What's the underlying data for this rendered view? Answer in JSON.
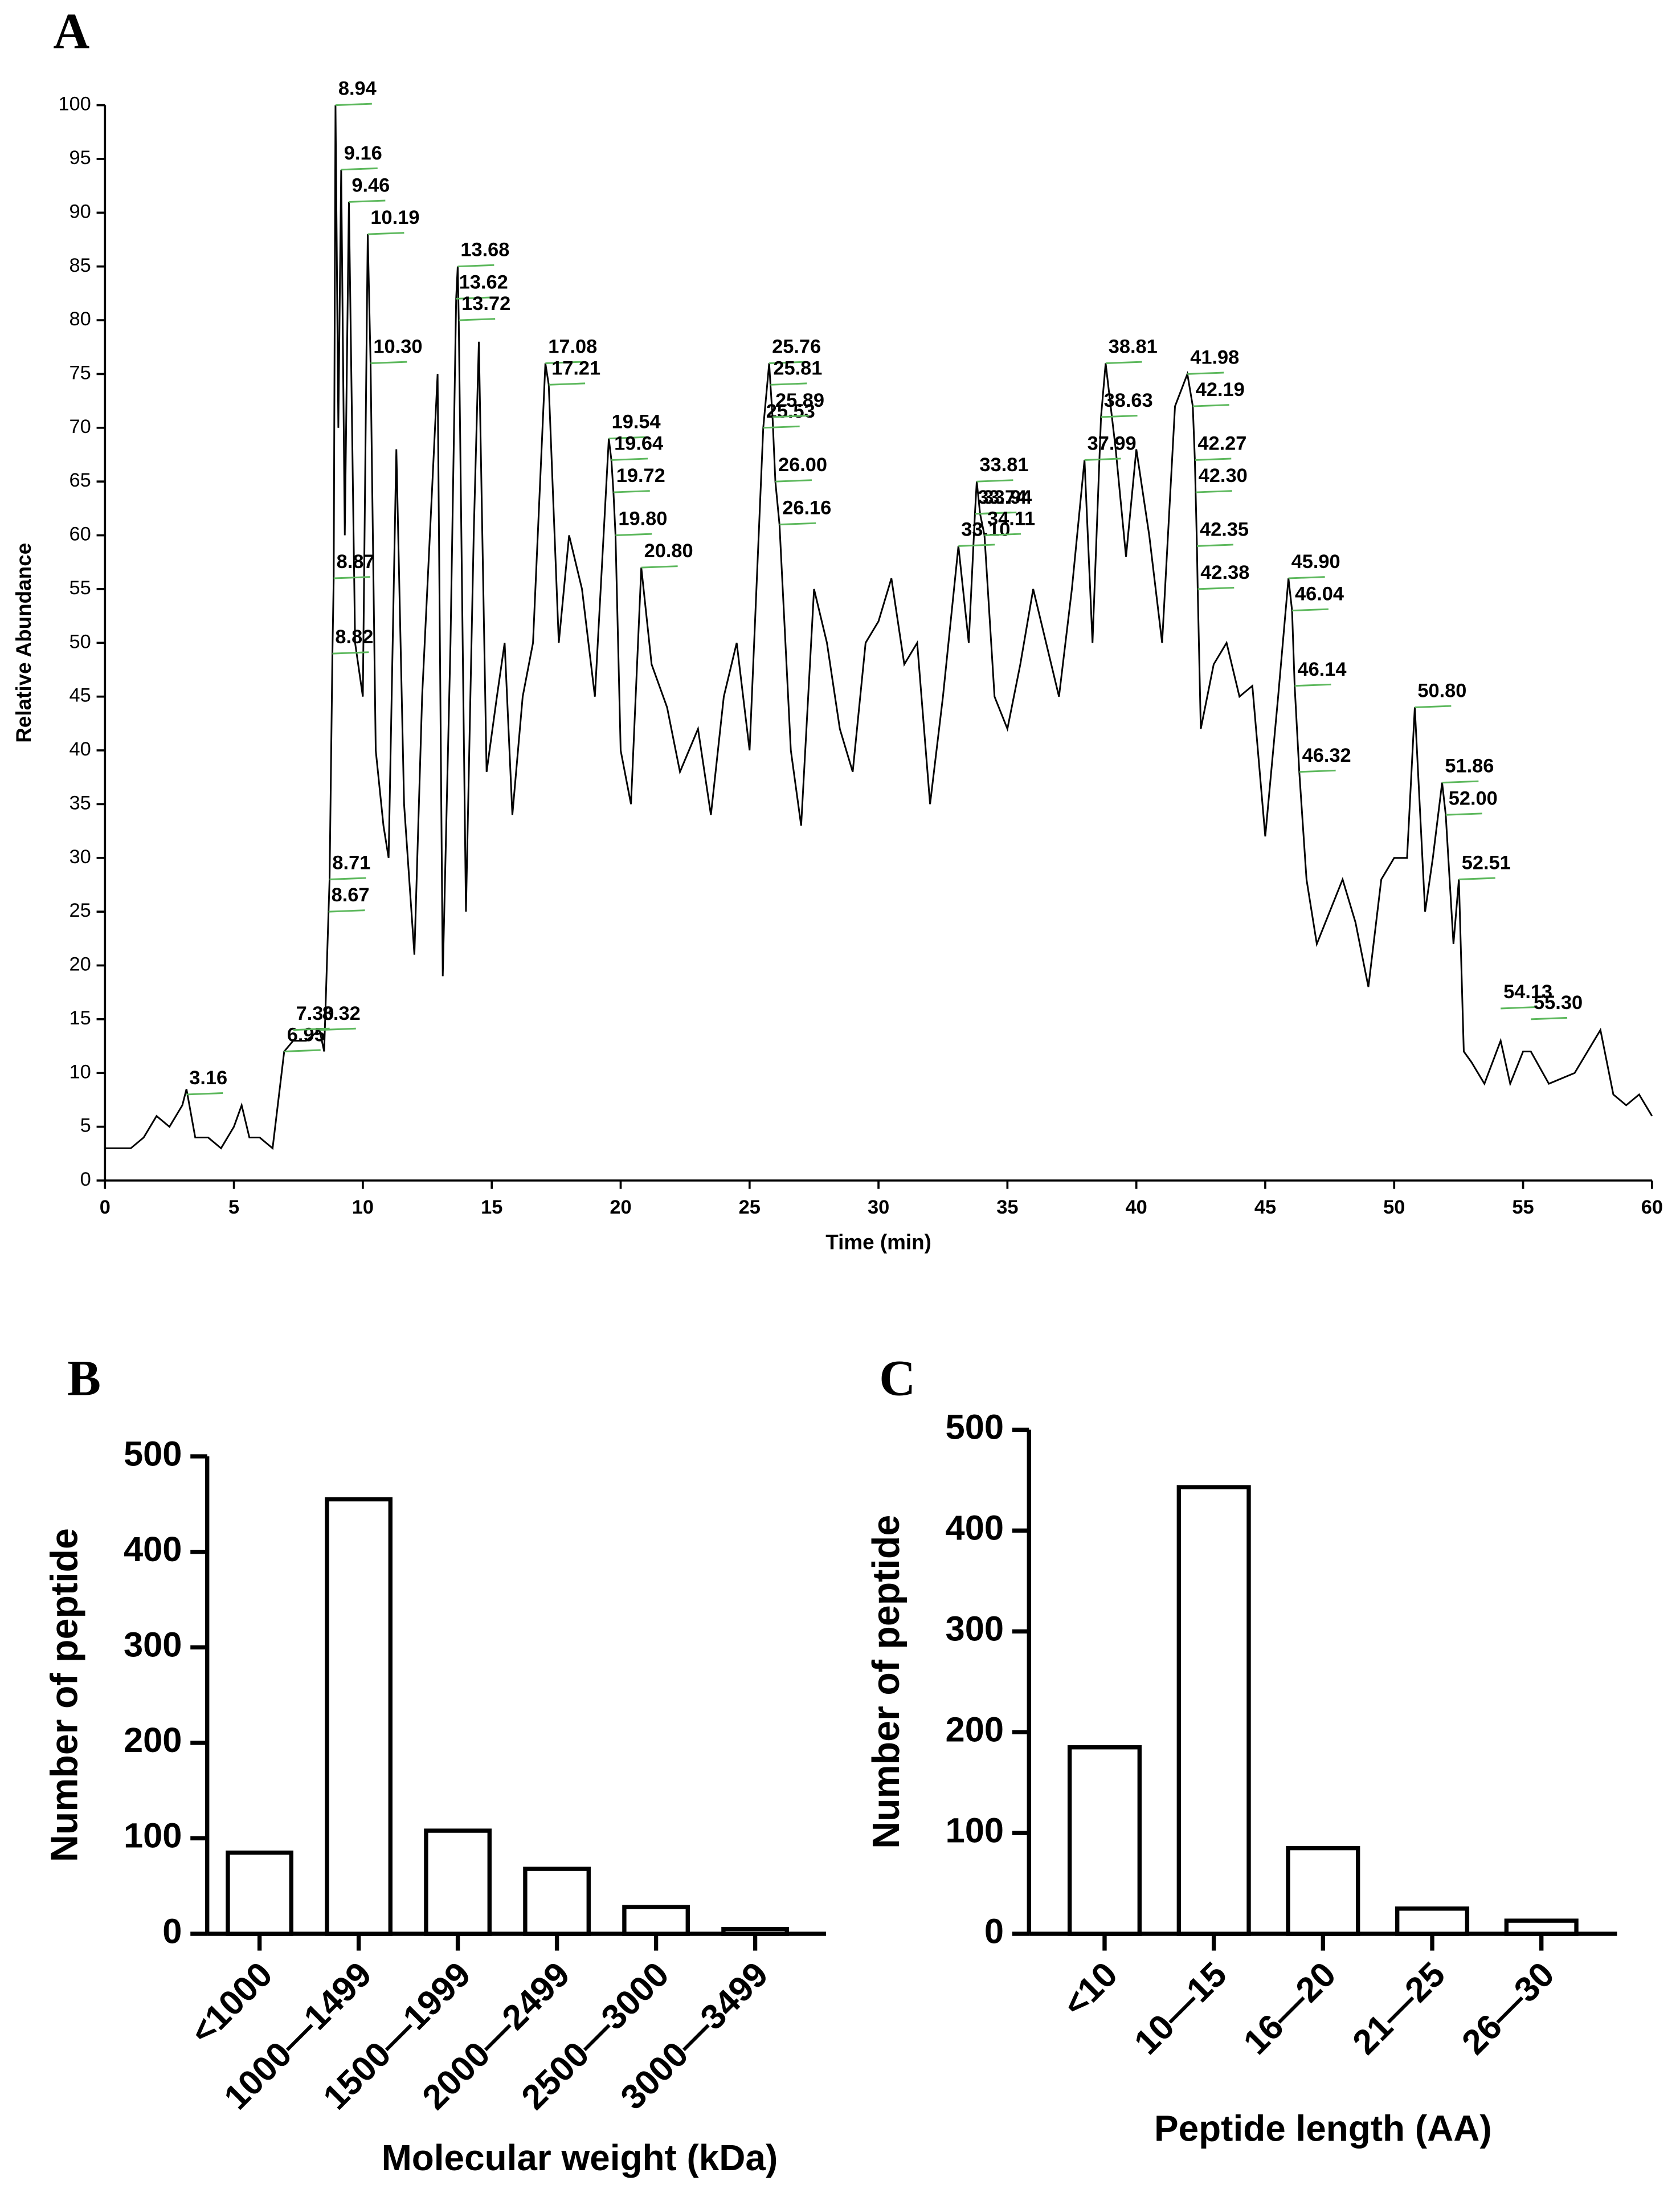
{
  "chart_data": [
    {
      "type": "line",
      "label": "A",
      "xlabel": "Time (min)",
      "ylabel": "Relative Abundance",
      "color": "#000000",
      "peak_color": "#5cb85c",
      "x": [
        0,
        1,
        1.5,
        2,
        2.5,
        3,
        3.16,
        3.5,
        4,
        4.5,
        5,
        5.3,
        5.6,
        6,
        6.5,
        6.95,
        7.3,
        7.8,
        8.32,
        8.5,
        8.67,
        8.71,
        8.82,
        8.87,
        8.94,
        9.05,
        9.16,
        9.3,
        9.46,
        9.7,
        10,
        10.19,
        10.3,
        10.5,
        10.8,
        11,
        11.3,
        11.6,
        12,
        12.3,
        12.6,
        12.9,
        13.1,
        13.4,
        13.62,
        13.68,
        13.72,
        14,
        14.3,
        14.5,
        14.8,
        15.2,
        15.5,
        15.8,
        16.2,
        16.6,
        17.08,
        17.21,
        17.6,
        18,
        18.5,
        19,
        19.54,
        19.64,
        19.72,
        19.8,
        20,
        20.4,
        20.8,
        21.2,
        21.8,
        22.3,
        23,
        23.5,
        24,
        24.5,
        25,
        25.53,
        25.76,
        25.81,
        25.89,
        26,
        26.16,
        26.6,
        27,
        27.5,
        28,
        28.5,
        29,
        29.5,
        30,
        30.5,
        31,
        31.5,
        32,
        32.5,
        33.1,
        33.5,
        33.74,
        33.81,
        33.94,
        34.11,
        34.5,
        35,
        35.5,
        36,
        36.5,
        37,
        37.5,
        37.99,
        38.3,
        38.63,
        38.81,
        39.2,
        39.6,
        40,
        40.5,
        41,
        41.5,
        41.98,
        42.19,
        42.27,
        42.3,
        42.35,
        42.38,
        42.5,
        43,
        43.5,
        44,
        44.5,
        45,
        45.5,
        45.9,
        46.04,
        46.14,
        46.32,
        46.6,
        47,
        47.5,
        48,
        48.5,
        49,
        49.5,
        50,
        50.5,
        50.8,
        51.2,
        51.5,
        51.86,
        52,
        52.3,
        52.51,
        52.7,
        53,
        53.5,
        54.13,
        54.5,
        55,
        55.3,
        56,
        57,
        58,
        58.5,
        59,
        59.5,
        60
      ],
      "values": [
        3,
        3,
        4,
        6,
        5,
        7,
        8.5,
        4,
        4,
        3,
        5,
        7,
        4,
        4,
        3,
        12,
        13,
        13,
        14,
        12,
        25,
        28,
        49,
        56,
        100,
        70,
        94,
        60,
        91,
        50,
        45,
        88,
        76,
        40,
        33,
        30,
        68,
        35,
        21,
        45,
        60,
        75,
        19,
        50,
        82,
        85,
        80,
        25,
        60,
        78,
        38,
        45,
        50,
        34,
        45,
        50,
        76,
        74,
        50,
        60,
        55,
        45,
        69,
        67,
        64,
        60,
        40,
        35,
        57,
        48,
        44,
        38,
        42,
        34,
        45,
        50,
        40,
        70,
        76,
        74,
        71,
        65,
        61,
        40,
        33,
        55,
        50,
        42,
        38,
        50,
        52,
        56,
        48,
        50,
        35,
        45,
        59,
        50,
        62,
        65,
        62,
        60,
        45,
        42,
        48,
        55,
        50,
        45,
        55,
        67,
        50,
        71,
        76,
        68,
        58,
        68,
        60,
        50,
        72,
        75,
        72,
        67,
        64,
        59,
        55,
        42,
        48,
        50,
        45,
        46,
        32,
        45,
        56,
        53,
        46,
        38,
        28,
        22,
        25,
        28,
        24,
        18,
        28,
        30,
        30,
        44,
        25,
        30,
        37,
        34,
        22,
        28,
        12,
        11,
        9,
        13,
        9,
        12,
        12,
        9,
        10,
        14,
        8,
        7,
        8,
        6
      ],
      "peaks": [
        {
          "label": "3.16",
          "x": 3.16,
          "y": 8
        },
        {
          "label": "6.95",
          "x": 6.95,
          "y": 12
        },
        {
          "label": "7.30",
          "x": 7.3,
          "y": 14
        },
        {
          "label": "8.32",
          "x": 8.32,
          "y": 14
        },
        {
          "label": "8.67",
          "x": 8.67,
          "y": 25
        },
        {
          "label": "8.71",
          "x": 8.71,
          "y": 28
        },
        {
          "label": "8.82",
          "x": 8.82,
          "y": 49
        },
        {
          "label": "8.87",
          "x": 8.87,
          "y": 56
        },
        {
          "label": "8.94",
          "x": 8.94,
          "y": 100
        },
        {
          "label": "9.16",
          "x": 9.16,
          "y": 94
        },
        {
          "label": "9.46",
          "x": 9.46,
          "y": 91
        },
        {
          "label": "10.19",
          "x": 10.19,
          "y": 88
        },
        {
          "label": "10.30",
          "x": 10.3,
          "y": 76
        },
        {
          "label": "13.62",
          "x": 13.62,
          "y": 82
        },
        {
          "label": "13.68",
          "x": 13.68,
          "y": 85
        },
        {
          "label": "13.72",
          "x": 13.72,
          "y": 80
        },
        {
          "label": "17.08",
          "x": 17.08,
          "y": 76
        },
        {
          "label": "17.21",
          "x": 17.21,
          "y": 74
        },
        {
          "label": "19.54",
          "x": 19.54,
          "y": 69
        },
        {
          "label": "19.64",
          "x": 19.64,
          "y": 67
        },
        {
          "label": "19.72",
          "x": 19.72,
          "y": 64
        },
        {
          "label": "19.80",
          "x": 19.8,
          "y": 60
        },
        {
          "label": "20.80",
          "x": 20.8,
          "y": 57
        },
        {
          "label": "25.53",
          "x": 25.53,
          "y": 70
        },
        {
          "label": "25.76",
          "x": 25.76,
          "y": 76
        },
        {
          "label": "25.81",
          "x": 25.81,
          "y": 74
        },
        {
          "label": "25.89",
          "x": 25.89,
          "y": 71
        },
        {
          "label": "26.00",
          "x": 26.0,
          "y": 65
        },
        {
          "label": "26.16",
          "x": 26.16,
          "y": 61
        },
        {
          "label": "33.10",
          "x": 33.1,
          "y": 59
        },
        {
          "label": "33.74",
          "x": 33.74,
          "y": 62
        },
        {
          "label": "33.81",
          "x": 33.81,
          "y": 65
        },
        {
          "label": "33.94",
          "x": 33.94,
          "y": 62
        },
        {
          "label": "34.11",
          "x": 34.11,
          "y": 60
        },
        {
          "label": "37.99",
          "x": 37.99,
          "y": 67
        },
        {
          "label": "38.63",
          "x": 38.63,
          "y": 71
        },
        {
          "label": "38.81",
          "x": 38.81,
          "y": 76
        },
        {
          "label": "41.98",
          "x": 41.98,
          "y": 75
        },
        {
          "label": "42.19",
          "x": 42.19,
          "y": 72
        },
        {
          "label": "42.27",
          "x": 42.27,
          "y": 67
        },
        {
          "label": "42.30",
          "x": 42.3,
          "y": 64
        },
        {
          "label": "42.35",
          "x": 42.35,
          "y": 59
        },
        {
          "label": "42.38",
          "x": 42.38,
          "y": 55
        },
        {
          "label": "45.90",
          "x": 45.9,
          "y": 56
        },
        {
          "label": "46.04",
          "x": 46.04,
          "y": 53
        },
        {
          "label": "46.14",
          "x": 46.14,
          "y": 46
        },
        {
          "label": "46.32",
          "x": 46.32,
          "y": 38
        },
        {
          "label": "50.80",
          "x": 50.8,
          "y": 44
        },
        {
          "label": "51.86",
          "x": 51.86,
          "y": 37
        },
        {
          "label": "52.00",
          "x": 52.0,
          "y": 34
        },
        {
          "label": "52.51",
          "x": 52.51,
          "y": 28
        },
        {
          "label": "54.13",
          "x": 54.13,
          "y": 16
        },
        {
          "label": "55.30",
          "x": 55.3,
          "y": 15
        }
      ],
      "xlim": [
        0,
        60
      ],
      "ylim": [
        0,
        100
      ],
      "xticks": [
        0,
        5,
        10,
        15,
        20,
        25,
        30,
        35,
        40,
        45,
        50,
        55,
        60
      ],
      "yticks": [
        0,
        5,
        10,
        15,
        20,
        25,
        30,
        35,
        40,
        45,
        50,
        55,
        60,
        65,
        70,
        75,
        80,
        85,
        90,
        95,
        100
      ]
    },
    {
      "type": "bar",
      "label": "B",
      "xlabel": "Molecular weight (kDa)",
      "ylabel": "Number of peptide",
      "color": "#ffffff",
      "categories": [
        "<1000",
        "1000—1499",
        "1500—1999",
        "2000—2499",
        "2500—3000",
        "3000—3499"
      ],
      "values": [
        85,
        455,
        108,
        68,
        28,
        5
      ],
      "ylim": [
        0,
        500
      ],
      "yticks": [
        0,
        100,
        200,
        300,
        400,
        500
      ]
    },
    {
      "type": "bar",
      "label": "C",
      "xlabel": "Peptide length (AA)",
      "ylabel": "Number of peptide",
      "color": "#ffffff",
      "categories": [
        "<10",
        "10—15",
        "16—20",
        "21—25",
        "26—30"
      ],
      "values": [
        185,
        443,
        85,
        25,
        13
      ],
      "ylim": [
        0,
        500
      ],
      "yticks": [
        0,
        100,
        200,
        300,
        400,
        500
      ]
    }
  ]
}
